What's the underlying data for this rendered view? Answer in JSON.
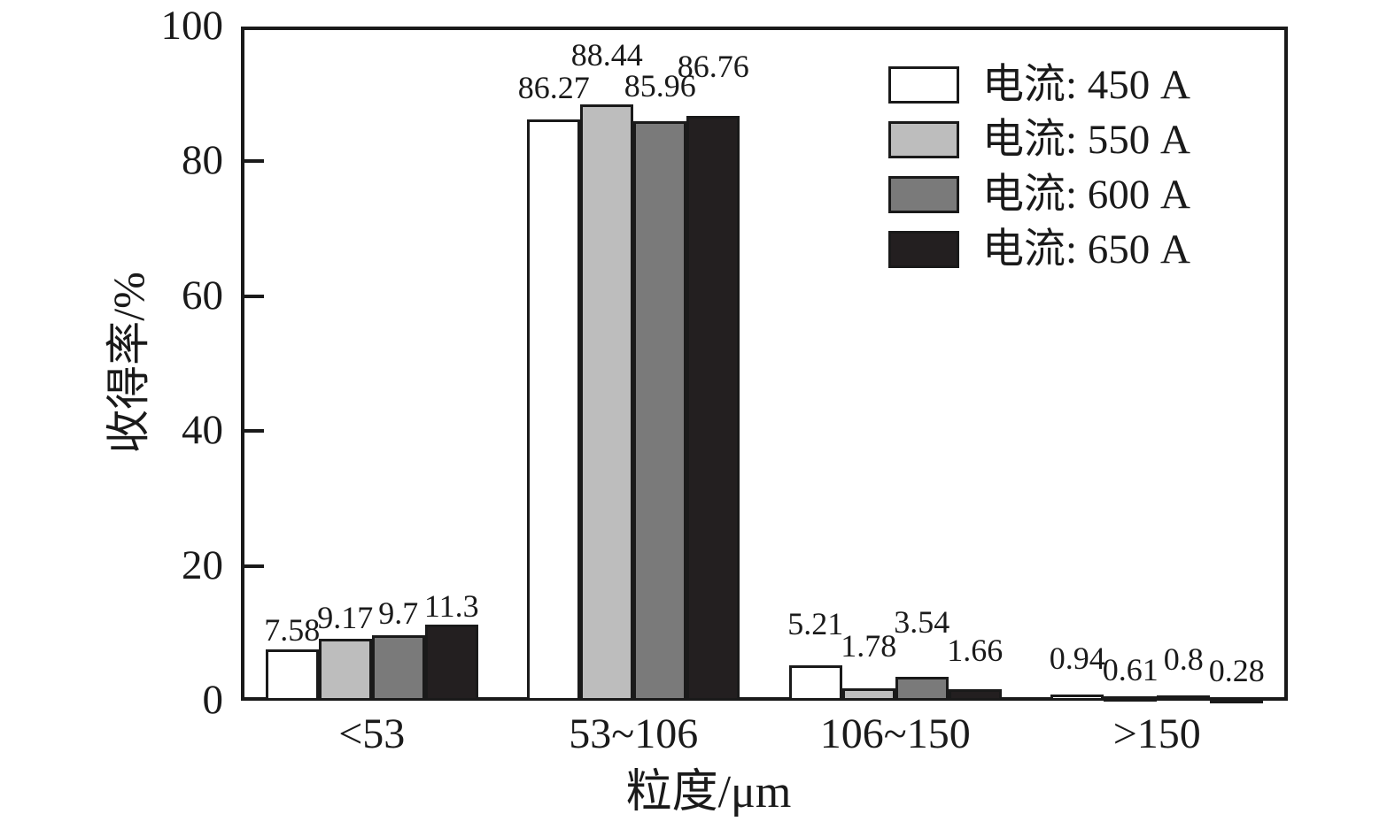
{
  "chart_data": {
    "type": "bar",
    "title": "",
    "xlabel": "粒度/μm",
    "ylabel": "收得率/%",
    "categories": [
      "<53",
      "53~106",
      "106~150",
      ">150"
    ],
    "series": [
      {
        "name": "电流: 450 A",
        "color": "#ffffff",
        "values": [
          7.58,
          86.27,
          5.21,
          0.94
        ],
        "labels": [
          "7.58",
          "86.27",
          "5.21",
          "0.94"
        ]
      },
      {
        "name": "电流: 550 A",
        "color": "#bdbdbd",
        "values": [
          9.17,
          88.44,
          1.78,
          0.61
        ],
        "labels": [
          "9.17",
          "88.44",
          "1.78",
          "0.61"
        ]
      },
      {
        "name": "电流: 600 A",
        "color": "#7a7a7a",
        "values": [
          9.7,
          85.96,
          3.54,
          0.8
        ],
        "labels": [
          "9.7",
          "85.96",
          "3.54",
          "0.8"
        ]
      },
      {
        "name": "电流: 650 A",
        "color": "#231f20",
        "values": [
          11.3,
          86.76,
          1.66,
          0.28
        ],
        "labels": [
          "11.3",
          "86.76",
          "1.66",
          "0.28"
        ]
      }
    ],
    "ylim": [
      0,
      100
    ],
    "yticks": [
      0,
      20,
      40,
      60,
      80,
      100
    ],
    "grid": false,
    "legend_position": "top-right",
    "bar_outline_color": "#1a1a1a",
    "axis_color": "#1a1a1a"
  }
}
